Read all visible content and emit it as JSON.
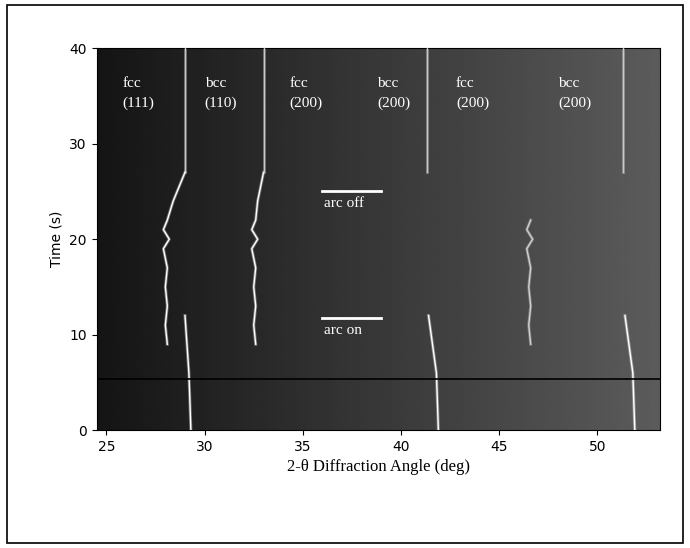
{
  "chart_data": {
    "type": "line",
    "x_label": "2-θ Diffraction Angle (deg)",
    "y_label": "Time (s)",
    "xlim": [
      24.5,
      53.2
    ],
    "xticks": [
      25,
      30,
      35,
      40,
      45,
      50
    ],
    "ylim": [
      0,
      40
    ],
    "yticks": [
      0,
      10,
      20,
      30,
      40
    ],
    "grid": false,
    "series": [
      {
        "color": "#ffffff",
        "x": [
          29.3,
          29.2,
          29.1,
          29.0
        ],
        "y": [
          0,
          6,
          9,
          12
        ]
      },
      {
        "color": "#c8c8c8",
        "x": [
          29.0,
          29.0
        ],
        "y": [
          27,
          40
        ]
      },
      {
        "color": "#ffffff",
        "x": [
          28.1,
          28.0,
          28.1,
          28.0,
          28.1,
          27.9,
          28.2,
          27.9,
          28.1,
          28.4,
          28.8,
          29.0
        ],
        "y": [
          9,
          11,
          13,
          15,
          17,
          19,
          20,
          21,
          22,
          24,
          26,
          27
        ]
      },
      {
        "color": "#ffffff",
        "x": [
          32.6,
          32.5,
          32.6,
          32.5,
          32.6,
          32.4,
          32.7,
          32.4,
          32.6,
          32.7,
          32.9,
          33.0
        ],
        "y": [
          9,
          11,
          13,
          15,
          17,
          19,
          20,
          21,
          22,
          24,
          26,
          27
        ]
      },
      {
        "color": "#c8c8c8",
        "x": [
          33.0,
          33.0
        ],
        "y": [
          27,
          40
        ]
      },
      {
        "color": "#ffffff",
        "x": [
          41.9,
          41.8,
          41.6,
          41.4
        ],
        "y": [
          0,
          6,
          9,
          12
        ]
      },
      {
        "color": "#c8c8c8",
        "x": [
          41.3,
          41.3
        ],
        "y": [
          27,
          40
        ]
      },
      {
        "color": "#d0d0d0",
        "x": [
          46.6,
          46.5,
          46.6,
          46.5,
          46.6,
          46.4,
          46.7,
          46.4,
          46.6
        ],
        "y": [
          9,
          11,
          13,
          15,
          17,
          19,
          20,
          21,
          22
        ]
      },
      {
        "color": "#ffffff",
        "x": [
          51.9,
          51.8,
          51.6,
          51.4
        ],
        "y": [
          0,
          6,
          9,
          12
        ]
      },
      {
        "color": "#c8c8c8",
        "x": [
          51.3,
          51.3
        ],
        "y": [
          27,
          40
        ]
      },
      {
        "color": "#000000",
        "x": [
          24.5,
          53.2
        ],
        "y": [
          5.4,
          5.4
        ]
      }
    ],
    "annotations": [
      {
        "text": "fcc\n(111)",
        "x": 25.8,
        "y": 37
      },
      {
        "text": "bcc\n(110)",
        "x": 30.0,
        "y": 37
      },
      {
        "text": "fcc\n(200)",
        "x": 34.3,
        "y": 37
      },
      {
        "text": "bcc\n(200)",
        "x": 38.8,
        "y": 37
      },
      {
        "text": "fcc\n(200)",
        "x": 42.8,
        "y": 37
      },
      {
        "text": "bcc\n(200)",
        "x": 48.0,
        "y": 37
      }
    ],
    "markers": [
      {
        "text": "arc off",
        "x": [
          36,
          39
        ],
        "y": 25
      },
      {
        "text": "arc on",
        "x": [
          36,
          39
        ],
        "y": 11.7
      }
    ]
  }
}
